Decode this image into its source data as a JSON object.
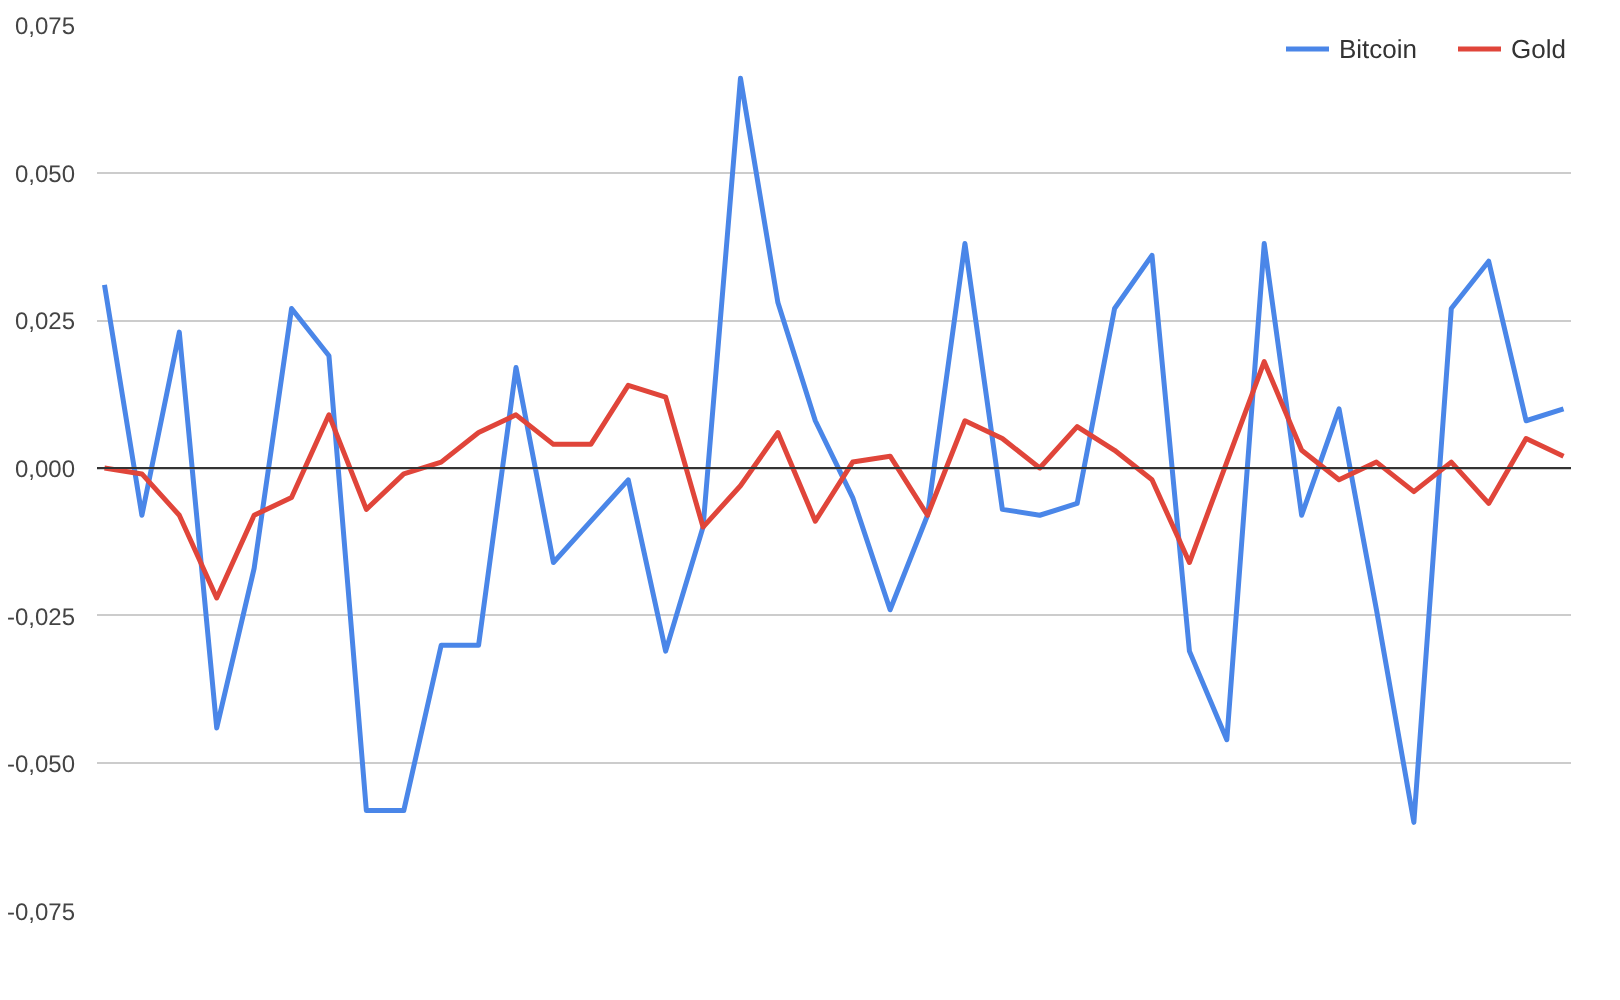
{
  "chart_data": {
    "type": "line",
    "categories": [
      null,
      null,
      null,
      null,
      null,
      null,
      null,
      null,
      null,
      null,
      null,
      null,
      null,
      null,
      null,
      null,
      null,
      null,
      null,
      null,
      null,
      null,
      null,
      null,
      null,
      null,
      null,
      null,
      null,
      null,
      null,
      null,
      null,
      null,
      null,
      null,
      null,
      null,
      null,
      null
    ],
    "series": [
      {
        "name": "Bitcoin",
        "color": "#4a86e8",
        "values": [
          0.031,
          -0.008,
          0.023,
          -0.044,
          -0.017,
          0.027,
          0.019,
          -0.058,
          -0.058,
          -0.03,
          -0.03,
          0.017,
          -0.016,
          -0.009,
          -0.002,
          -0.031,
          -0.01,
          0.066,
          0.028,
          0.008,
          -0.005,
          -0.024,
          -0.008,
          0.038,
          -0.007,
          -0.008,
          -0.006,
          0.027,
          0.036,
          -0.031,
          -0.046,
          0.038,
          -0.008,
          0.01,
          -0.024,
          -0.06,
          0.027,
          0.035,
          0.008,
          0.01
        ]
      },
      {
        "name": "Gold",
        "color": "#e0453a",
        "values": [
          0.0,
          -0.001,
          -0.008,
          -0.022,
          -0.008,
          -0.005,
          0.009,
          -0.007,
          -0.001,
          0.001,
          0.006,
          0.009,
          0.004,
          0.004,
          0.014,
          0.012,
          -0.01,
          -0.003,
          0.006,
          -0.009,
          0.001,
          0.002,
          -0.008,
          0.008,
          0.005,
          0.0,
          0.007,
          0.003,
          -0.002,
          -0.016,
          0.001,
          0.018,
          0.003,
          -0.002,
          0.001,
          -0.004,
          0.001,
          -0.006,
          0.005,
          0.002
        ]
      }
    ],
    "ylim": [
      -0.075,
      0.075
    ],
    "yticks": [
      {
        "value": -0.075,
        "label": "-0,075"
      },
      {
        "value": -0.05,
        "label": "-0,050"
      },
      {
        "value": -0.025,
        "label": "-0,025"
      },
      {
        "value": 0,
        "label": "0,000"
      },
      {
        "value": 0.025,
        "label": "0,025"
      },
      {
        "value": 0.05,
        "label": "0,050"
      },
      {
        "value": 0.075,
        "label": "0,075"
      }
    ],
    "ref_lines": [
      {
        "axis": "y",
        "value": 0,
        "color": "#333333"
      }
    ],
    "grid": "y",
    "legend": "top right",
    "tick_labels": "y",
    "marker": "none",
    "line_style": "solid"
  }
}
